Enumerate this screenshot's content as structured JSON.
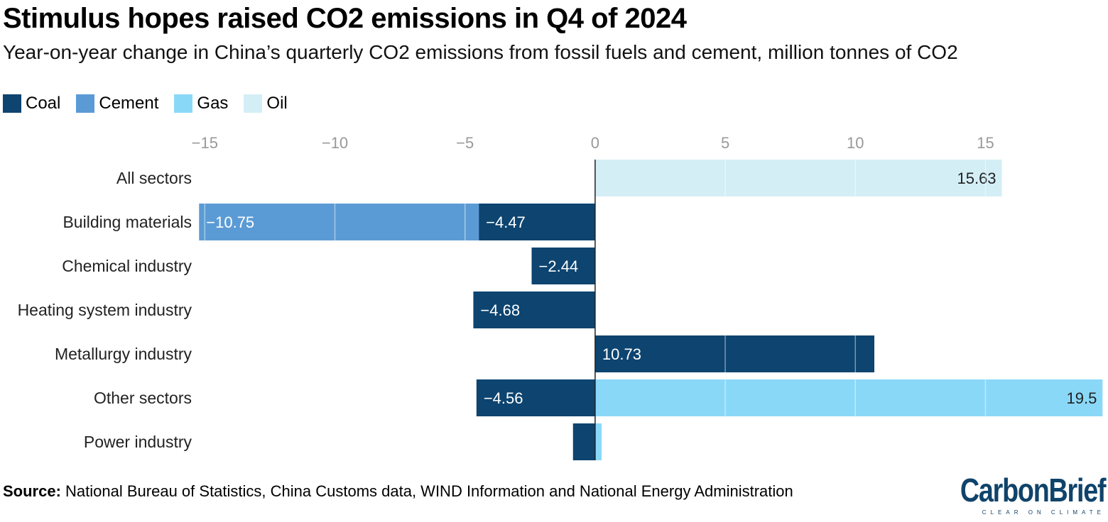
{
  "title": "Stimulus hopes raised CO2 emissions in Q4 of 2024",
  "subtitle": "Year-on-year change in China’s quarterly CO2 emissions from fossil fuels and cement, million tonnes of CO2",
  "source_label": "Source:",
  "source_text": "National Bureau of Statistics, China Customs data, WIND Information and National Energy Administration",
  "logo": {
    "name": "CarbonBrief",
    "tagline": "CLEAR ON CLIMATE"
  },
  "colors": {
    "coal": "#0d4470",
    "cement": "#5b9bd5",
    "gas": "#8ad8f8",
    "oil": "#d4eef6"
  },
  "chart_data": {
    "type": "bar",
    "orientation": "horizontal",
    "stacked": true,
    "title": "Stimulus hopes raised CO2 emissions in Q4 of 2024",
    "xlabel": "",
    "ylabel": "",
    "xlim": [
      -15.2,
      19.6
    ],
    "xticks": [
      -15,
      -10,
      -5,
      0,
      5,
      10,
      15
    ],
    "xtick_labels": [
      "−15",
      "−10",
      "−5",
      "0",
      "5",
      "10",
      "15"
    ],
    "legend": [
      "Coal",
      "Cement",
      "Gas",
      "Oil"
    ],
    "legend_position": "top-left",
    "categories": [
      "All sectors",
      "Building materials",
      "Chemical industry",
      "Heating system industry",
      "Metallurgy industry",
      "Other sectors",
      "Power industry"
    ],
    "series": [
      {
        "name": "Coal",
        "key": "coal",
        "values": [
          0,
          -4.47,
          -2.44,
          -4.68,
          10.73,
          -4.56,
          -0.85
        ],
        "labels": [
          "",
          "−4.47",
          "−2.44",
          "−4.68",
          "10.73",
          "−4.56",
          ""
        ]
      },
      {
        "name": "Cement",
        "key": "cement",
        "values": [
          0,
          -10.75,
          0,
          0,
          0,
          0,
          0
        ],
        "labels": [
          "",
          "−10.75",
          "",
          "",
          "",
          "",
          ""
        ]
      },
      {
        "name": "Gas",
        "key": "gas",
        "values": [
          0,
          0,
          0,
          0,
          0,
          19.5,
          0.25
        ],
        "labels": [
          "",
          "",
          "",
          "",
          "",
          "19.5",
          ""
        ]
      },
      {
        "name": "Oil",
        "key": "oil",
        "values": [
          15.63,
          0,
          0,
          0,
          0,
          0,
          0
        ],
        "labels": [
          "15.63",
          "",
          "",
          "",
          "",
          "",
          ""
        ]
      }
    ]
  }
}
